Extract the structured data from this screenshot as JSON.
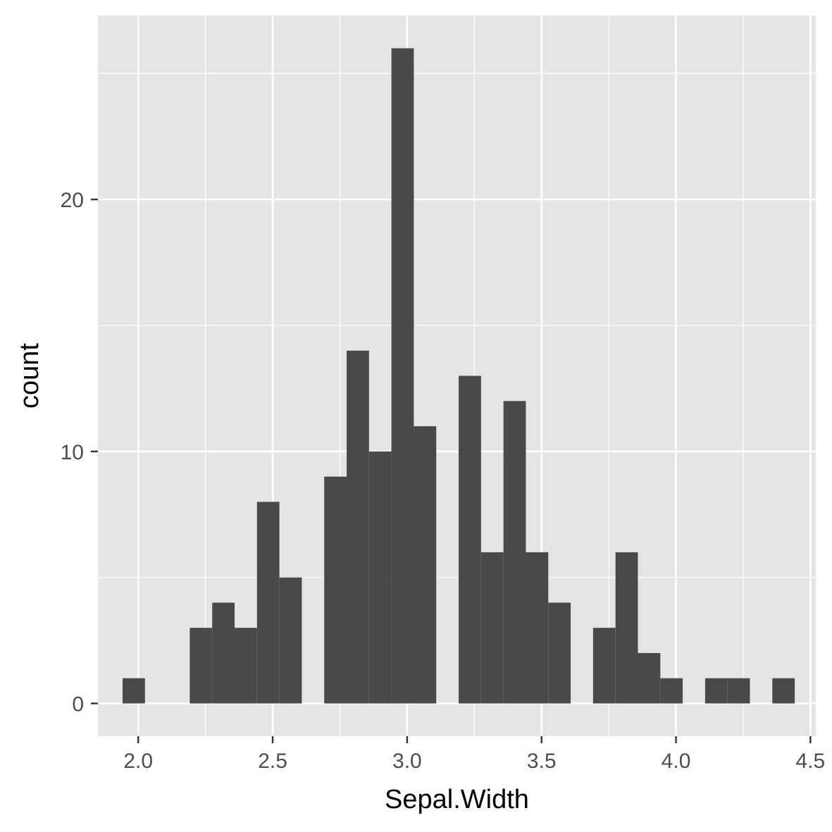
{
  "chart_data": {
    "type": "bar",
    "subtype": "histogram",
    "title": "",
    "xlabel": "Sepal.Width",
    "ylabel": "count",
    "bin_width": 0.0833,
    "bins": [
      {
        "x": 1.9833,
        "count": 1
      },
      {
        "x": 2.0667,
        "count": 0
      },
      {
        "x": 2.15,
        "count": 0
      },
      {
        "x": 2.2333,
        "count": 3
      },
      {
        "x": 2.3167,
        "count": 4
      },
      {
        "x": 2.4,
        "count": 3
      },
      {
        "x": 2.4833,
        "count": 8
      },
      {
        "x": 2.5667,
        "count": 5
      },
      {
        "x": 2.65,
        "count": 0
      },
      {
        "x": 2.7333,
        "count": 9
      },
      {
        "x": 2.8167,
        "count": 14
      },
      {
        "x": 2.9,
        "count": 10
      },
      {
        "x": 2.9833,
        "count": 26
      },
      {
        "x": 3.0667,
        "count": 11
      },
      {
        "x": 3.15,
        "count": 0
      },
      {
        "x": 3.2333,
        "count": 13
      },
      {
        "x": 3.3167,
        "count": 6
      },
      {
        "x": 3.4,
        "count": 12
      },
      {
        "x": 3.4833,
        "count": 6
      },
      {
        "x": 3.5667,
        "count": 4
      },
      {
        "x": 3.65,
        "count": 0
      },
      {
        "x": 3.7333,
        "count": 3
      },
      {
        "x": 3.8167,
        "count": 6
      },
      {
        "x": 3.9,
        "count": 2
      },
      {
        "x": 3.9833,
        "count": 1
      },
      {
        "x": 4.0667,
        "count": 0
      },
      {
        "x": 4.15,
        "count": 1
      },
      {
        "x": 4.2333,
        "count": 1
      },
      {
        "x": 4.3167,
        "count": 0
      },
      {
        "x": 4.4,
        "count": 1
      }
    ],
    "xlim": [
      1.85,
      4.52
    ],
    "ylim": [
      -1.3,
      27.3
    ],
    "x_ticks": [
      {
        "value": 2.0,
        "label": "2.0"
      },
      {
        "value": 2.5,
        "label": "2.5"
      },
      {
        "value": 3.0,
        "label": "3.0"
      },
      {
        "value": 3.5,
        "label": "3.5"
      },
      {
        "value": 4.0,
        "label": "4.0"
      },
      {
        "value": 4.5,
        "label": "4.5"
      }
    ],
    "y_ticks": [
      {
        "value": 0,
        "label": "0"
      },
      {
        "value": 10,
        "label": "10"
      },
      {
        "value": 20,
        "label": "20"
      }
    ],
    "x_minor_gridlines": [
      2.25,
      2.75,
      3.25,
      3.75,
      4.25
    ],
    "y_minor_gridlines": [
      5,
      15,
      25
    ],
    "grid": true,
    "legend": "none",
    "colors": {
      "panel_background": "#e5e5e5",
      "grid_line": "#ffffff",
      "bar_fill": "#494949",
      "tick_label": "#4d4d4d",
      "tick_mark": "#333333",
      "axis_title": "#000000"
    }
  }
}
